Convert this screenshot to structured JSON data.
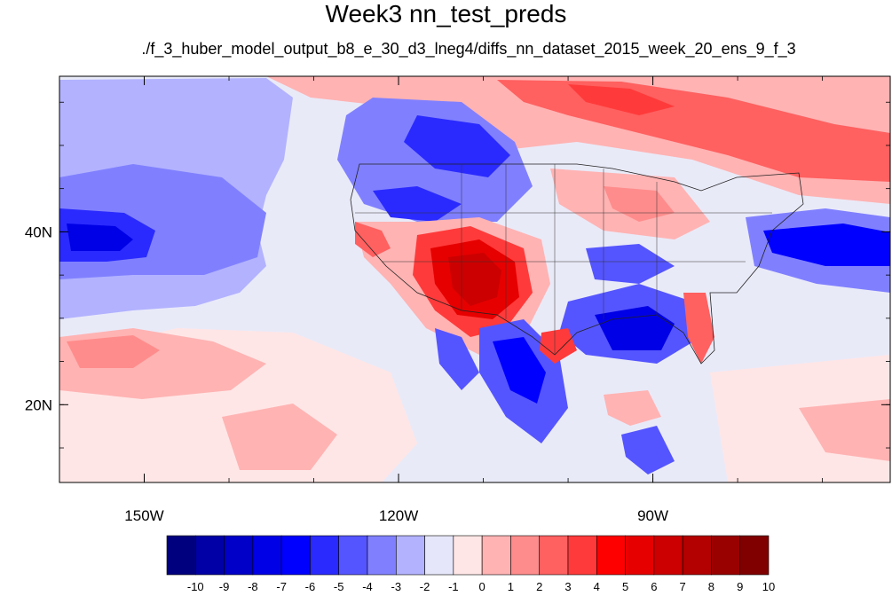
{
  "title": "Week3 nn_test_preds",
  "subtitle": "./f_3_huber_model_output_b8_e_30_d3_lneg4/diffs_nn_dataset_2015_week_20_ens_9_f_3",
  "map": {
    "lon_range": [
      -160,
      -62
    ],
    "lat_range": [
      11,
      58
    ],
    "lon_ticks": [
      {
        "value": -150,
        "label": "150W"
      },
      {
        "value": -120,
        "label": "120W"
      },
      {
        "value": -90,
        "label": "90W"
      }
    ],
    "lat_ticks": [
      {
        "value": 40,
        "label": "40N"
      },
      {
        "value": 20,
        "label": "20N"
      }
    ],
    "background_color": "#e9eaf8"
  },
  "colorbar": {
    "labels": [
      "-10",
      "-9",
      "-8",
      "-7",
      "-6",
      "-5",
      "-4",
      "-3",
      "-2",
      "-1",
      "0",
      "1",
      "2",
      "3",
      "4",
      "5",
      "6",
      "7",
      "8",
      "9",
      "10"
    ],
    "colors": [
      "#00007f",
      "#0000a6",
      "#0000c8",
      "#0000e6",
      "#0000ff",
      "#2a2aff",
      "#5555ff",
      "#8080ff",
      "#b2b2ff",
      "#e6e6fa",
      "#ffe6e6",
      "#ffb3b3",
      "#ff8c8c",
      "#ff6060",
      "#ff3a3a",
      "#ff0000",
      "#e60000",
      "#cc0000",
      "#b30000",
      "#990000",
      "#800000"
    ]
  }
}
